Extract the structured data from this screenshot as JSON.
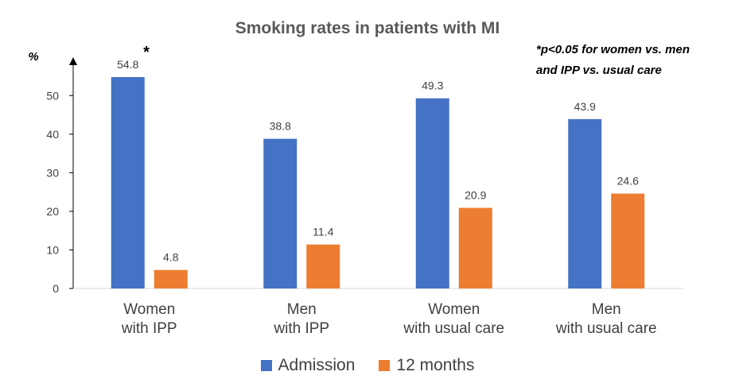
{
  "chart_data": {
    "type": "bar",
    "title": "Smoking rates in patients with MI",
    "ylabel": "%",
    "ylim": [
      0,
      60
    ],
    "yticks": [
      0,
      10,
      20,
      30,
      40,
      50
    ],
    "categories": [
      [
        "Women",
        "with IPP"
      ],
      [
        "Men",
        "with IPP"
      ],
      [
        "Women",
        "with usual care"
      ],
      [
        "Men",
        "with usual care"
      ]
    ],
    "series": [
      {
        "name": "Admission",
        "color": "#4472C4",
        "values": [
          54.8,
          38.8,
          49.3,
          43.9
        ]
      },
      {
        "name": "12 months",
        "color": "#ED7D31",
        "values": [
          4.8,
          11.4,
          20.9,
          24.6
        ]
      }
    ],
    "data_labels": {
      "Admission": [
        "54.8",
        "38.8",
        "49.3",
        "43.9"
      ],
      "12 months": [
        "4.8",
        "11.4",
        "20.9",
        "24.6"
      ]
    },
    "significance_marker": "*",
    "annotation": "*p<0.05 for women vs. men and IPP vs. usual care",
    "legend_position": "bottom",
    "grid": false
  }
}
